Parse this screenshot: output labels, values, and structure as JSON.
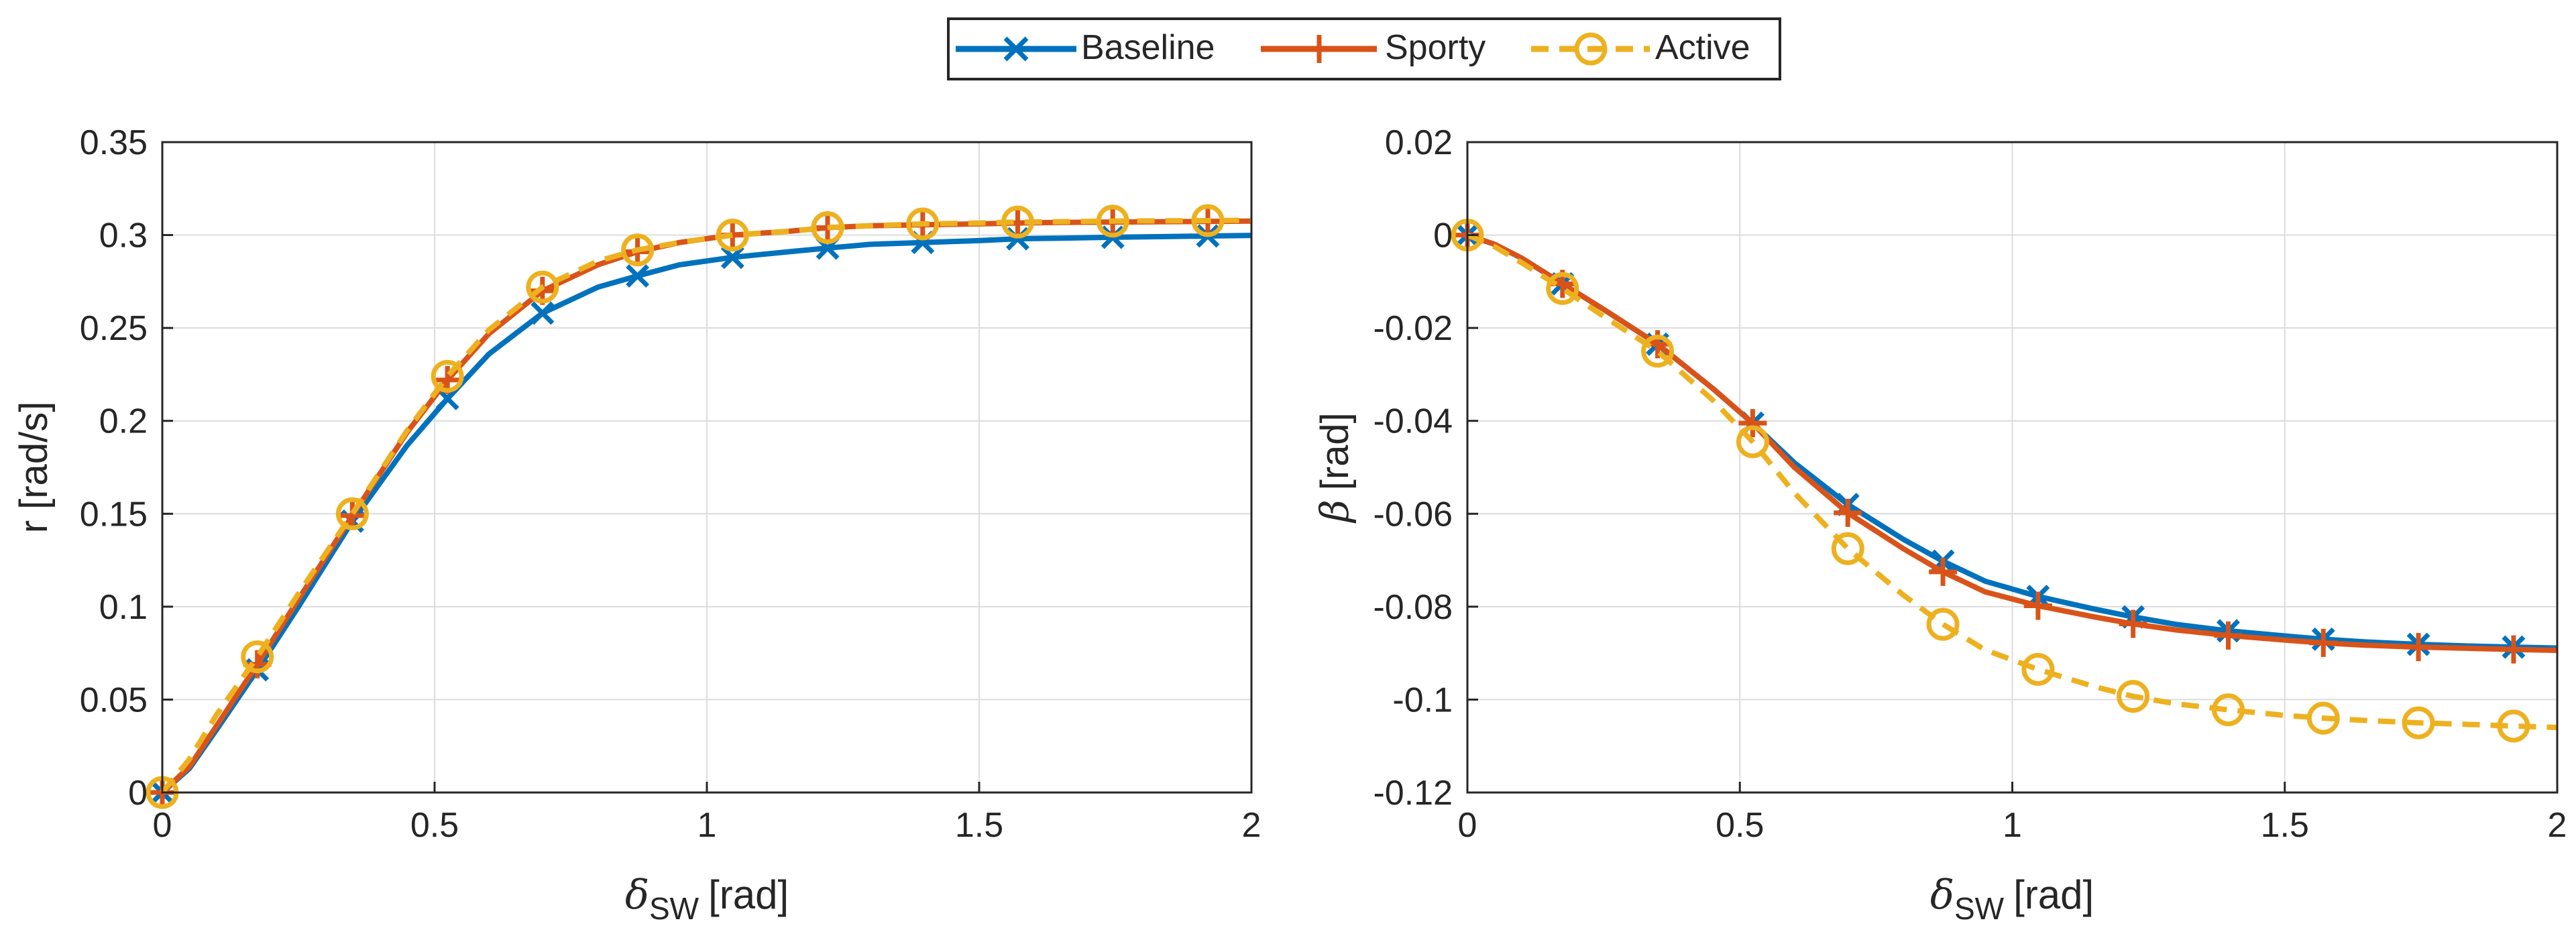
{
  "legend": {
    "entries": [
      {
        "label": "Baseline",
        "color": "#0072BD",
        "marker": "x-marker",
        "dashed": false
      },
      {
        "label": "Sporty",
        "color": "#D95319",
        "marker": "plus-marker",
        "dashed": false
      },
      {
        "label": "Active",
        "color": "#EDB120",
        "marker": "circle-marker",
        "dashed": true
      }
    ]
  },
  "chart_data": [
    {
      "type": "line",
      "title": "",
      "xlabel_symbol": "δ",
      "xlabel_sub": "SW",
      "xlabel_unit": "[rad]",
      "ylabel": "r [rad/s]",
      "xlim": [
        0,
        2
      ],
      "ylim": [
        0,
        0.35
      ],
      "grid": true,
      "xticks": [
        0,
        0.5,
        1,
        1.5,
        2
      ],
      "xtick_labels": [
        "0",
        "0.5",
        "1",
        "1.5",
        "2"
      ],
      "yticks": [
        0,
        0.05,
        0.1,
        0.15,
        0.2,
        0.25,
        0.3,
        0.35
      ],
      "ytick_labels": [
        "0",
        "0.05",
        "0.1",
        "0.15",
        "0.2",
        "0.25",
        "0.3",
        "0.35"
      ],
      "marker_x": [
        0,
        0.1745,
        0.349,
        0.5236,
        0.6981,
        0.8727,
        1.0472,
        1.2217,
        1.3963,
        1.5708,
        1.7453,
        1.9199
      ],
      "series": [
        {
          "name": "Baseline",
          "color": "#0072BD",
          "x": [
            0,
            0.05,
            0.1,
            0.1745,
            0.25,
            0.349,
            0.45,
            0.5236,
            0.6,
            0.6981,
            0.8,
            0.8727,
            0.95,
            1.0472,
            1.15,
            1.2217,
            1.3,
            1.3963,
            1.5,
            1.5708,
            1.65,
            1.7453,
            1.85,
            1.9199,
            2.0
          ],
          "y": [
            0,
            0.013,
            0.034,
            0.066,
            0.1,
            0.146,
            0.187,
            0.212,
            0.236,
            0.258,
            0.272,
            0.278,
            0.284,
            0.288,
            0.291,
            0.293,
            0.295,
            0.296,
            0.297,
            0.298,
            0.2983,
            0.2988,
            0.2992,
            0.2995,
            0.2998
          ]
        },
        {
          "name": "Sporty",
          "color": "#D95319",
          "x": [
            0,
            0.05,
            0.1,
            0.1745,
            0.25,
            0.349,
            0.45,
            0.5236,
            0.6,
            0.6981,
            0.8,
            0.8727,
            0.95,
            1.0472,
            1.15,
            1.2217,
            1.3,
            1.3963,
            1.5,
            1.5708,
            1.65,
            1.7453,
            1.85,
            1.9199,
            2.0
          ],
          "y": [
            0,
            0.014,
            0.036,
            0.069,
            0.104,
            0.149,
            0.194,
            0.222,
            0.247,
            0.27,
            0.284,
            0.291,
            0.296,
            0.3,
            0.302,
            0.304,
            0.305,
            0.3055,
            0.306,
            0.3065,
            0.3068,
            0.307,
            0.3072,
            0.3073,
            0.3075
          ]
        },
        {
          "name": "Active",
          "color": "#EDB120",
          "dashed": true,
          "x": [
            0,
            0.05,
            0.1,
            0.1745,
            0.25,
            0.349,
            0.45,
            0.5236,
            0.6,
            0.6981,
            0.8,
            0.8727,
            0.95,
            1.0472,
            1.15,
            1.2217,
            1.3,
            1.3963,
            1.5,
            1.5708,
            1.65,
            1.7453,
            1.85,
            1.9199,
            2.0
          ],
          "y": [
            0,
            0.018,
            0.042,
            0.073,
            0.107,
            0.15,
            0.195,
            0.224,
            0.249,
            0.272,
            0.286,
            0.292,
            0.296,
            0.3,
            0.302,
            0.304,
            0.305,
            0.306,
            0.3065,
            0.307,
            0.3072,
            0.3075,
            0.3077,
            0.3078,
            0.308
          ]
        }
      ]
    },
    {
      "type": "line",
      "title": "",
      "xlabel_symbol": "δ",
      "xlabel_sub": "SW",
      "xlabel_unit": "[rad]",
      "ylabel_symbol": "β",
      "ylabel_unit": "[rad]",
      "xlim": [
        0,
        2
      ],
      "ylim": [
        -0.12,
        0.02
      ],
      "grid": true,
      "xticks": [
        0,
        0.5,
        1,
        1.5,
        2
      ],
      "xtick_labels": [
        "0",
        "0.5",
        "1",
        "1.5",
        "2"
      ],
      "yticks": [
        -0.12,
        -0.1,
        -0.08,
        -0.06,
        -0.04,
        -0.02,
        0,
        0.02
      ],
      "ytick_labels": [
        "-0.12",
        "-0.1",
        "-0.08",
        "-0.06",
        "-0.04",
        "-0.02",
        "0",
        "0.02"
      ],
      "marker_x": [
        0,
        0.1745,
        0.349,
        0.5236,
        0.6981,
        0.8727,
        1.0472,
        1.2217,
        1.3963,
        1.5708,
        1.7453,
        1.9199
      ],
      "series": [
        {
          "name": "Baseline",
          "color": "#0072BD",
          "x": [
            0,
            0.05,
            0.1,
            0.1745,
            0.25,
            0.349,
            0.45,
            0.5236,
            0.6,
            0.6981,
            0.8,
            0.8727,
            0.95,
            1.0472,
            1.15,
            1.2217,
            1.3,
            1.3963,
            1.5,
            1.5708,
            1.65,
            1.7453,
            1.85,
            1.9199,
            2.0
          ],
          "y": [
            0,
            -0.002,
            -0.005,
            -0.0105,
            -0.016,
            -0.0235,
            -0.033,
            -0.0405,
            -0.049,
            -0.058,
            -0.0655,
            -0.0702,
            -0.0745,
            -0.0778,
            -0.0805,
            -0.0822,
            -0.0838,
            -0.0852,
            -0.0863,
            -0.087,
            -0.0876,
            -0.0881,
            -0.0885,
            -0.0887,
            -0.0889
          ]
        },
        {
          "name": "Sporty",
          "color": "#D95319",
          "x": [
            0,
            0.05,
            0.1,
            0.1745,
            0.25,
            0.349,
            0.45,
            0.5236,
            0.6,
            0.6981,
            0.8,
            0.8727,
            0.95,
            1.0472,
            1.15,
            1.2217,
            1.3,
            1.3963,
            1.5,
            1.5708,
            1.65,
            1.7453,
            1.85,
            1.9199,
            2.0
          ],
          "y": [
            0,
            -0.002,
            -0.005,
            -0.0105,
            -0.016,
            -0.0235,
            -0.033,
            -0.0405,
            -0.05,
            -0.0598,
            -0.0675,
            -0.0725,
            -0.0768,
            -0.0798,
            -0.0822,
            -0.0837,
            -0.085,
            -0.0862,
            -0.0872,
            -0.0878,
            -0.0883,
            -0.0887,
            -0.089,
            -0.0892,
            -0.0894
          ]
        },
        {
          "name": "Active",
          "color": "#EDB120",
          "dashed": true,
          "x": [
            0,
            0.05,
            0.1,
            0.1745,
            0.25,
            0.349,
            0.45,
            0.5236,
            0.6,
            0.6981,
            0.8,
            0.8727,
            0.95,
            1.0472,
            1.15,
            1.2217,
            1.3,
            1.3963,
            1.5,
            1.5708,
            1.65,
            1.7453,
            1.85,
            1.9199,
            2.0
          ],
          "y": [
            0,
            -0.0025,
            -0.006,
            -0.0115,
            -0.0175,
            -0.025,
            -0.0355,
            -0.0445,
            -0.0555,
            -0.0675,
            -0.0775,
            -0.0838,
            -0.0893,
            -0.0935,
            -0.0972,
            -0.0993,
            -0.1009,
            -0.1022,
            -0.1034,
            -0.104,
            -0.1045,
            -0.105,
            -0.1054,
            -0.1057,
            -0.106
          ]
        }
      ]
    }
  ]
}
